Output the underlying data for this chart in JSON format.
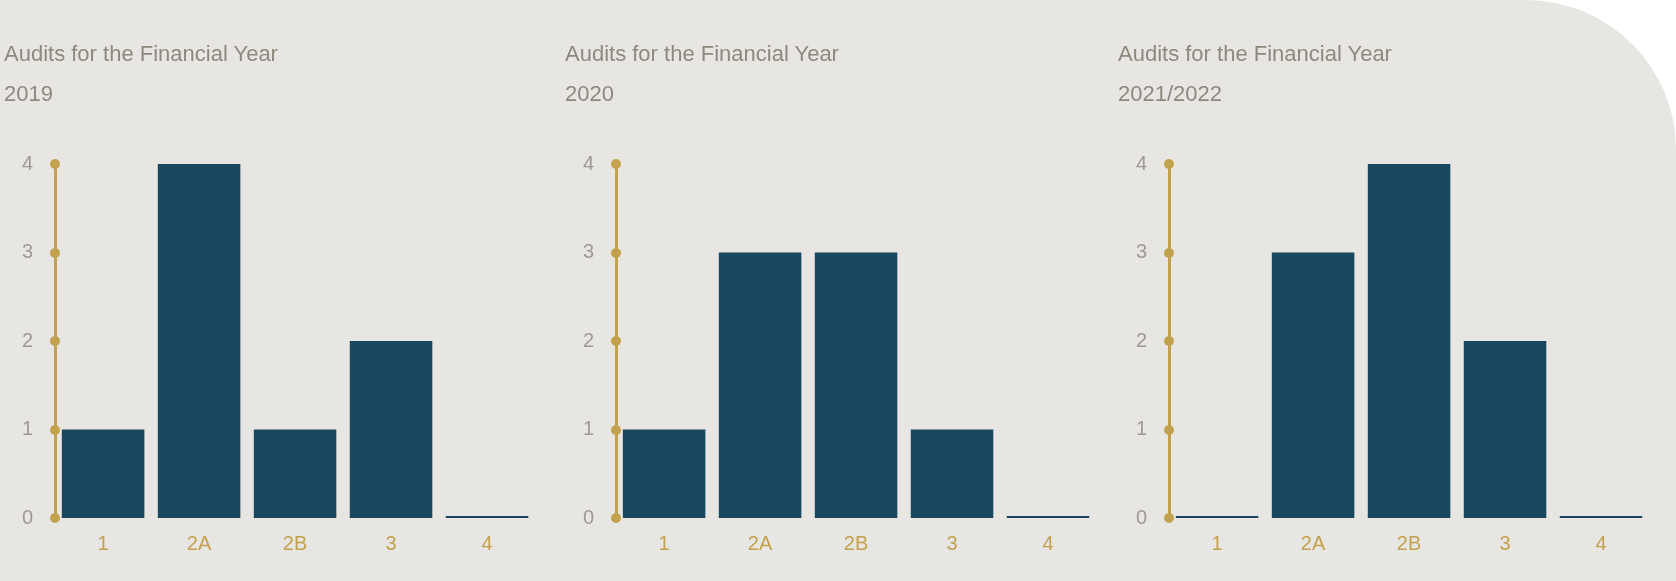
{
  "chart_data": [
    {
      "type": "bar",
      "title": "Audits for the Financial Year\n2019",
      "categories": [
        "1",
        "2A",
        "2B",
        "3",
        "4"
      ],
      "values": [
        1,
        4,
        1,
        2,
        0
      ],
      "color": "#1a4760",
      "ylim": [
        0,
        4
      ],
      "yticks": [
        0,
        1,
        2,
        3,
        4
      ]
    },
    {
      "type": "bar",
      "title": "Audits for the Financial Year\n2020",
      "categories": [
        "1",
        "2A",
        "2B",
        "3",
        "4"
      ],
      "values": [
        1,
        3,
        3,
        1,
        0
      ],
      "color": "#1a4760",
      "ylim": [
        0,
        4
      ],
      "yticks": [
        0,
        1,
        2,
        3,
        4
      ]
    },
    {
      "type": "bar",
      "title": "Audits for the Financial Year\n2021/2022",
      "categories": [
        "1",
        "2A",
        "2B",
        "3",
        "4"
      ],
      "values": [
        0,
        3,
        4,
        2,
        0
      ],
      "color": "#1a4760",
      "ylim": [
        0,
        4
      ],
      "yticks": [
        0,
        1,
        2,
        3,
        4
      ]
    }
  ]
}
